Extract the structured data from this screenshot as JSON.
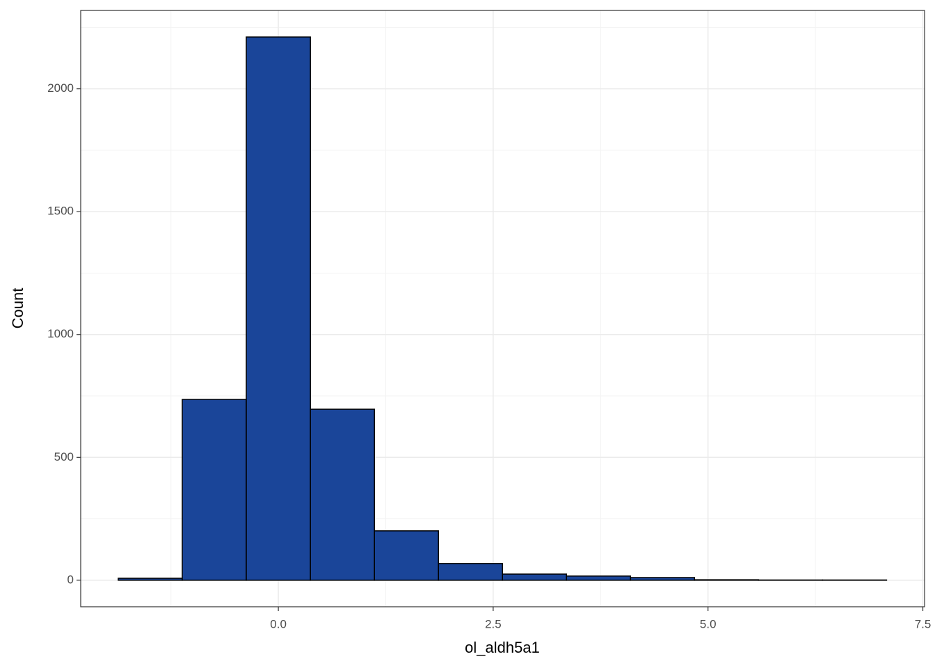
{
  "chart_data": {
    "type": "histogram",
    "x_label": "ol_aldh5a1",
    "y_label": "Count",
    "bins": [
      -1.863,
      -1.118,
      -0.373,
      0.373,
      1.118,
      1.863,
      2.608,
      3.353,
      4.098,
      4.843,
      5.588,
      6.333,
      7.078
    ],
    "values": [
      8,
      736,
      2211,
      696,
      201,
      68,
      25,
      17,
      11,
      2,
      1,
      1
    ],
    "color": "#1a4599",
    "xlim": [
      -2.3,
      7.52
    ],
    "ylim": [
      -108,
      2319
    ],
    "xticks": [
      {
        "value": 0,
        "label": "0.0"
      },
      {
        "value": 2.5,
        "label": "2.5"
      },
      {
        "value": 5,
        "label": "5.0"
      },
      {
        "value": 7.5,
        "label": "7.5"
      }
    ],
    "yticks": [
      0,
      500,
      1000,
      1500,
      2000
    ],
    "grid": true
  }
}
